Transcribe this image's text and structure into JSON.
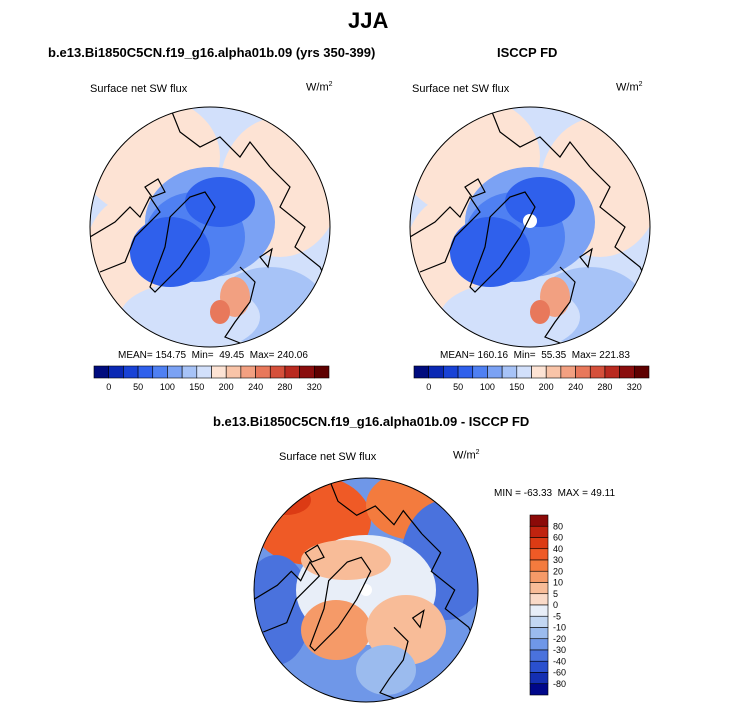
{
  "figure": {
    "title": "JJA",
    "variable": "Surface net SW flux",
    "units_base": "W/m",
    "units_exp": "2"
  },
  "panels": {
    "model": {
      "title": "b.e13.Bi1850C5CN.f19_g16.alpha01b.09 (yrs 350-399)",
      "stats": {
        "mean_label": "MEAN=",
        "mean": "154.75",
        "min_label": "Min=",
        "min": "49.45",
        "max_label": "Max=",
        "max": "240.06"
      }
    },
    "obs": {
      "title": "ISCCP FD",
      "stats": {
        "mean_label": "MEAN=",
        "mean": "160.16",
        "min_label": "Min=",
        "min": "55.35",
        "max_label": "Max=",
        "max": "221.83"
      }
    },
    "diff": {
      "title": "b.e13.Bi1850C5CN.f19_g16.alpha01b.09 - ISCCP FD",
      "stats": {
        "min_label": "MIN =",
        "min": "-63.33",
        "max_label": "MAX =",
        "max": "49.11"
      }
    }
  },
  "chart_data": [
    {
      "type": "heatmap",
      "projection": "north-polar-stereographic",
      "title": "b.e13.Bi1850C5CN.f19_g16.alpha01b.09 (yrs 350-399)",
      "variable": "Surface net SW flux",
      "units": "W/m2",
      "mean": 154.75,
      "min": 49.45,
      "max": 240.06,
      "colorbar": {
        "orientation": "horizontal",
        "levels": [
          0,
          25,
          50,
          75,
          100,
          125,
          150,
          175,
          200,
          220,
          240,
          260,
          280,
          300,
          320
        ],
        "tick_labels": [
          "0",
          "50",
          "100",
          "150",
          "200",
          "240",
          "280",
          "320"
        ],
        "colors": [
          "#000c7e",
          "#0a28b4",
          "#1842d6",
          "#2f60ec",
          "#4f80f2",
          "#7ba2f4",
          "#a7c3f7",
          "#d2e0fb",
          "#fde3d4",
          "#f9c4a8",
          "#f2a081",
          "#e8785b",
          "#d5503b",
          "#b92a20",
          "#8a0d0d",
          "#5e0000"
        ]
      }
    },
    {
      "type": "heatmap",
      "projection": "north-polar-stereographic",
      "title": "ISCCP FD",
      "variable": "Surface net SW flux",
      "units": "W/m2",
      "mean": 160.16,
      "min": 55.35,
      "max": 221.83,
      "colorbar": {
        "orientation": "horizontal",
        "levels": [
          0,
          25,
          50,
          75,
          100,
          125,
          150,
          175,
          200,
          220,
          240,
          260,
          280,
          300,
          320
        ],
        "tick_labels": [
          "0",
          "50",
          "100",
          "150",
          "200",
          "240",
          "280",
          "320"
        ],
        "colors": [
          "#000c7e",
          "#0a28b4",
          "#1842d6",
          "#2f60ec",
          "#4f80f2",
          "#7ba2f4",
          "#a7c3f7",
          "#d2e0fb",
          "#fde3d4",
          "#f9c4a8",
          "#f2a081",
          "#e8785b",
          "#d5503b",
          "#b92a20",
          "#8a0d0d",
          "#5e0000"
        ]
      }
    },
    {
      "type": "heatmap",
      "projection": "north-polar-stereographic",
      "title": "b.e13.Bi1850C5CN.f19_g16.alpha01b.09 - ISCCP FD",
      "variable": "Surface net SW flux",
      "units": "W/m2",
      "min": -63.33,
      "max": 49.11,
      "colorbar": {
        "orientation": "vertical",
        "tick_labels": [
          "80",
          "60",
          "40",
          "30",
          "20",
          "10",
          "5",
          "0",
          "-5",
          "-10",
          "-20",
          "-30",
          "-40",
          "-60",
          "-80"
        ],
        "colors": [
          "#8c0a08",
          "#c0230f",
          "#dc3b14",
          "#ef5a26",
          "#f37b3e",
          "#f59a68",
          "#f8bc98",
          "#fadac8",
          "#e8eef8",
          "#c3d7f3",
          "#9bbbee",
          "#6f97e8",
          "#4a72dd",
          "#2a50cf",
          "#142fb2",
          "#00078a"
        ]
      }
    }
  ]
}
